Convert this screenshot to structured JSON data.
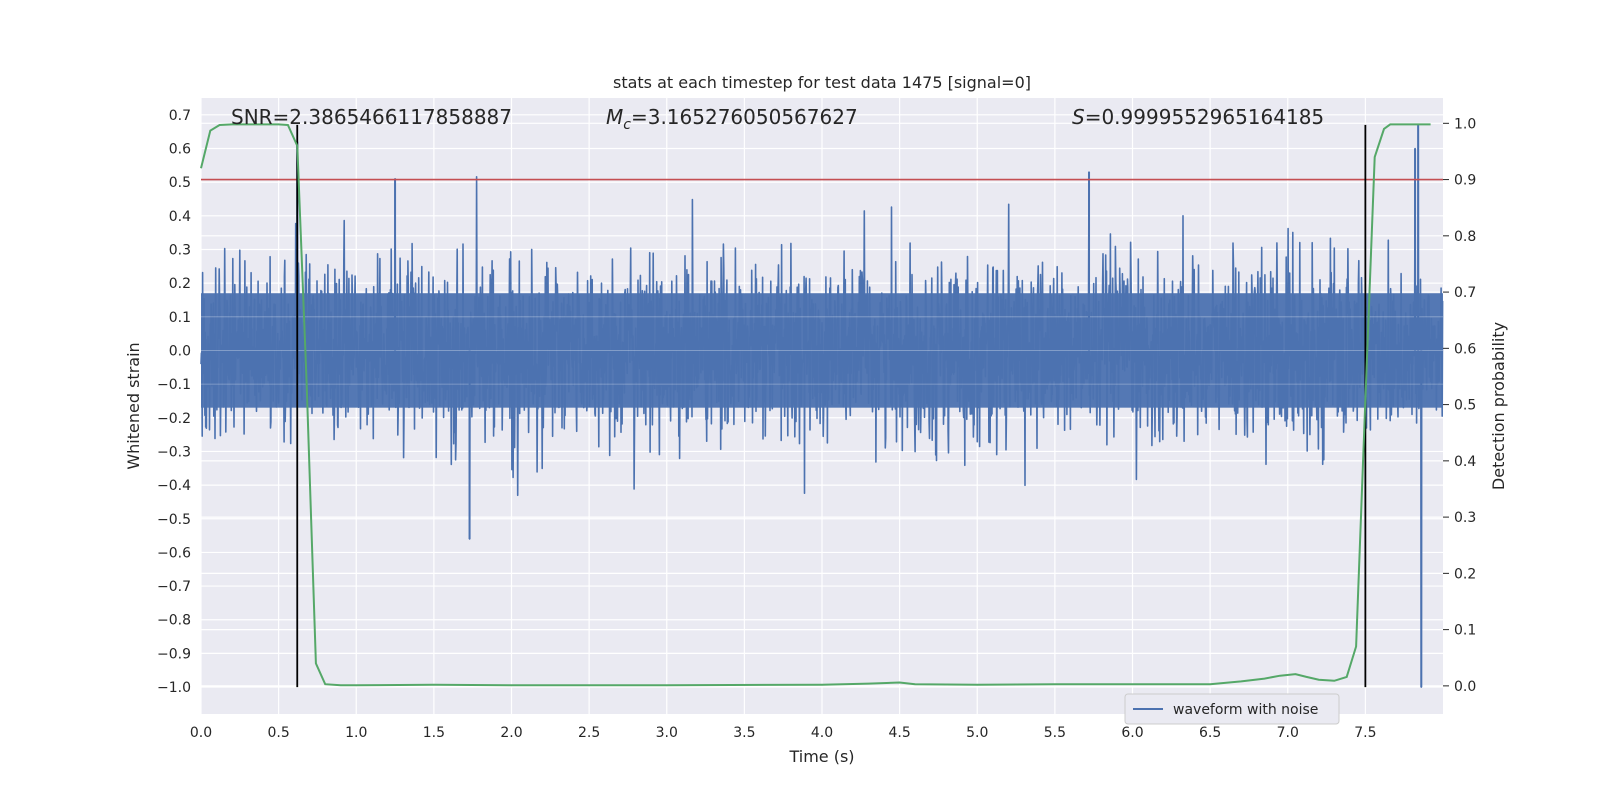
{
  "chart_data": {
    "type": "line",
    "title": "stats at each timestep for test data 1475 [signal=0]",
    "xlabel": "Time (s)",
    "ylabel": "Whitened strain",
    "y2label": "Detection probability",
    "xlim": [
      0.0,
      8.0
    ],
    "ylim": [
      -1.08,
      0.75
    ],
    "y2lim": [
      -0.05,
      1.045
    ],
    "xticks": [
      "0.0",
      "0.5",
      "1.0",
      "1.5",
      "2.0",
      "2.5",
      "3.0",
      "3.5",
      "4.0",
      "4.5",
      "5.0",
      "5.5",
      "6.0",
      "6.5",
      "7.0",
      "7.5"
    ],
    "yticks": [
      "0.7",
      "0.6",
      "0.5",
      "0.4",
      "0.3",
      "0.2",
      "0.1",
      "0.0",
      "−0.1",
      "−0.2",
      "−0.3",
      "−0.4",
      "−0.5",
      "−0.6",
      "−0.7",
      "−0.8",
      "−0.9",
      "−1.0"
    ],
    "y2ticks": [
      "1.0",
      "0.9",
      "0.8",
      "0.7",
      "0.6",
      "0.5",
      "0.4",
      "0.3",
      "0.2",
      "0.1",
      "0.0"
    ],
    "annotations": {
      "snr": "SNR=2.3865466117858887",
      "mc_symbol": "M",
      "mc_sub": "c",
      "mc_value": "=3.165276050567627",
      "s_symbol": "S",
      "s_value": "=0.9999552965164185"
    },
    "threshold": {
      "axis": "y2",
      "value": 0.9,
      "color": "#c44e52"
    },
    "vlines": [
      {
        "x": 0.62,
        "ymin": -1.0,
        "ymax": 0.67
      },
      {
        "x": 7.5,
        "ymin": -1.0,
        "ymax": 0.67
      }
    ],
    "series": [
      {
        "name": "waveform with noise",
        "axis": "y",
        "color": "#4c72b0",
        "kind": "noise",
        "envelope": {
          "typical_amplitude": 0.17,
          "peak_amplitude": 0.62,
          "samples_per_second": 400
        },
        "notable_spikes": [
          {
            "x": 0.62,
            "y": 0.62
          },
          {
            "x": 1.25,
            "y": 0.51
          },
          {
            "x": 1.73,
            "y": -0.56
          },
          {
            "x": 5.72,
            "y": 0.53
          },
          {
            "x": 7.82,
            "y": 0.6
          },
          {
            "x": 7.84,
            "y": 0.67
          },
          {
            "x": 7.86,
            "y": -1.0
          }
        ]
      },
      {
        "name": "detection probability",
        "axis": "y2",
        "color": "#55a868",
        "x": [
          0.0,
          0.06,
          0.12,
          0.2,
          0.3,
          0.4,
          0.5,
          0.56,
          0.62,
          0.68,
          0.74,
          0.8,
          0.9,
          1.0,
          1.5,
          2.0,
          3.0,
          4.0,
          4.3,
          4.5,
          4.6,
          5.0,
          5.5,
          5.9,
          6.5,
          6.7,
          6.85,
          6.95,
          7.05,
          7.12,
          7.2,
          7.3,
          7.38,
          7.44,
          7.5,
          7.56,
          7.62,
          7.66,
          7.72,
          7.8,
          7.92
        ],
        "y": [
          0.92,
          0.987,
          0.997,
          0.998,
          0.998,
          0.998,
          0.998,
          0.997,
          0.96,
          0.54,
          0.04,
          0.003,
          0.001,
          0.001,
          0.002,
          0.001,
          0.001,
          0.002,
          0.004,
          0.006,
          0.003,
          0.002,
          0.003,
          0.003,
          0.003,
          0.008,
          0.013,
          0.018,
          0.021,
          0.016,
          0.011,
          0.009,
          0.016,
          0.07,
          0.51,
          0.94,
          0.99,
          0.998,
          0.998,
          0.998,
          0.998
        ]
      }
    ],
    "legend": {
      "location": "lower-right",
      "entries": [
        "waveform with noise"
      ]
    }
  }
}
